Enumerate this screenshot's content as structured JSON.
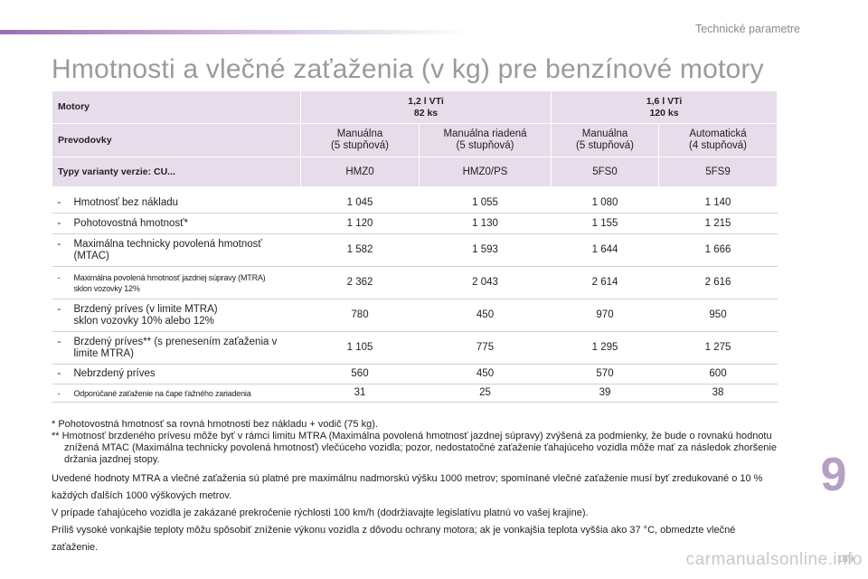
{
  "header": {
    "section_title": "Technické parametre",
    "title": "Hmotnosti a vlečné zaťaženia (v kg) pre benzínové motory"
  },
  "table": {
    "motory_label": "Motory",
    "engine_1_line1": "1,2 l VTi",
    "engine_1_line2": "82 ks",
    "engine_2_line1": "1,6 l VTi",
    "engine_2_line2": "120 ks",
    "gearbox_label": "Prevodovky",
    "gearboxes": [
      {
        "line1": "Manuálna",
        "line2": "(5 stupňová)"
      },
      {
        "line1": "Manuálna riadená",
        "line2": "(5 stupňová)"
      },
      {
        "line1": "Manuálna",
        "line2": "(5 stupňová)"
      },
      {
        "line1": "Automatická",
        "line2": "(4 stupňová)"
      }
    ],
    "variants_label": "Typy varianty verzie: CU...",
    "variants": [
      "HMZ0",
      "HMZ0/PS",
      "5FS0",
      "5FS9"
    ],
    "rows": [
      {
        "line1": "Hmotnosť bez nákladu",
        "line2": "",
        "values": [
          "1 045",
          "1 055",
          "1 080",
          "1 140"
        ]
      },
      {
        "line1": "Pohotovostná hmotnosť*",
        "line2": "",
        "values": [
          "1 120",
          "1 130",
          "1 155",
          "1 215"
        ]
      },
      {
        "line1": "Maximálna technicky povolená hmotnosť",
        "line2": "(MTAC)",
        "values": [
          "1 582",
          "1 593",
          "1 644",
          "1 666"
        ]
      },
      {
        "line1": "Maximálna povolená hmotnosť jazdnej súpravy (MTRA)",
        "line2": "sklon vozovky 12%",
        "values": [
          "2 362",
          "2 043",
          "2 614",
          "2 616"
        ]
      },
      {
        "line1": "Brzdený príves (v limite MTRA)",
        "line2": "sklon vozovky 10% alebo 12%",
        "values": [
          "780",
          "450",
          "970",
          "950"
        ]
      },
      {
        "line1": "Brzdený príves** (s prenesením zaťaženia v",
        "line2": "limite MTRA)",
        "values": [
          "1 105",
          "775",
          "1 295",
          "1 275"
        ]
      },
      {
        "line1": "Nebrzdený príves",
        "line2": "",
        "values": [
          "560",
          "450",
          "570",
          "600"
        ]
      },
      {
        "line1": "Odporúčané zaťaženie na čape ťažného zariadenia",
        "line2": "",
        "values": [
          "31",
          "25",
          "39",
          "38"
        ]
      }
    ]
  },
  "notes": {
    "footnote_1": "* Pohotovostná hmotnosť sa rovná hmotnosti bez nákladu + vodič (75 kg).",
    "footnote_2": "** Hmotnosť brzdeného prívesu môže byť v rámci limitu MTRA (Maximálna povolená hmotnosť jazdnej súpravy) zvýšená za podmienky, že bude o rovnakú hodnotu znížená MTAC (Maximálna technicky povolená hmotnosť) vlečúceho vozidla; pozor, nedostatočné zaťaženie ťahajúceho vozidla môže mať za následok zhoršenie držania jazdnej stopy.",
    "paragraph_1": "Uvedené hodnoty MTRA a vlečné zaťaženia sú platné pre maximálnu nadmorskú výšku 1000 metrov; spomínané vlečné zaťaženie musí byť zredukované o 10 % každých ďalších 1000 výškových metrov.",
    "paragraph_2": "V prípade ťahajúceho vozidla je zakázané prekročenie rýchlosti 100 km/h (dodržiavajte legislatívu platnú vo vašej krajine).",
    "paragraph_3": "Príliš vysoké vonkajšie teploty môžu spôsobiť zníženie výkonu vozidla z dôvodu ochrany motora; ak je vonkajšia teplota vyššia ako 37 °C, obmedzte vlečné zaťaženie."
  },
  "chapter_number": "9",
  "page_number": "189",
  "watermark": "carmanualsonline.info",
  "colors": {
    "header_bg": "#e7dcea",
    "accent": "#9a6fb0",
    "chapter_number": "#b5a0c4"
  }
}
